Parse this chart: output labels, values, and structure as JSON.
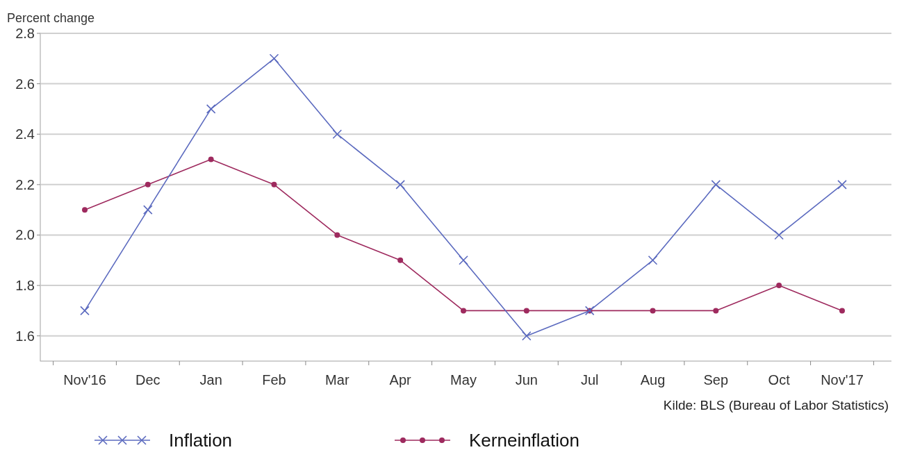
{
  "chart_data": {
    "type": "line",
    "ylabel": "Percent change",
    "categories": [
      "Nov'16",
      "Dec",
      "Jan",
      "Feb",
      "Mar",
      "Apr",
      "May",
      "Jun",
      "Jul",
      "Aug",
      "Sep",
      "Oct",
      "Nov'17"
    ],
    "series": [
      {
        "name": "Inflation",
        "color": "#5b6abf",
        "marker": "cross",
        "values": [
          1.7,
          2.1,
          2.5,
          2.7,
          2.4,
          2.2,
          1.9,
          1.6,
          1.7,
          1.9,
          2.2,
          2.0,
          2.2
        ]
      },
      {
        "name": "Kerneinflation",
        "color": "#9e2a5e",
        "marker": "circle",
        "values": [
          2.1,
          2.2,
          2.3,
          2.2,
          2.0,
          1.9,
          1.7,
          1.7,
          1.7,
          1.7,
          1.7,
          1.8,
          1.7
        ]
      }
    ],
    "ylim": [
      1.5,
      2.8
    ],
    "yticks": [
      {
        "value": 1.6,
        "label": "1.6"
      },
      {
        "value": 1.8,
        "label": "1.8"
      },
      {
        "value": 2.0,
        "label": "2.0"
      },
      {
        "value": 2.2,
        "label": "2.2"
      },
      {
        "value": 2.4,
        "label": "2.4"
      },
      {
        "value": 2.6,
        "label": "2.6"
      },
      {
        "value": 2.8,
        "label": "2.8"
      }
    ],
    "grid": "y",
    "legend": "bottom",
    "annotations": [
      "Kilde: BLS (Bureau of Labor Statistics)"
    ]
  }
}
